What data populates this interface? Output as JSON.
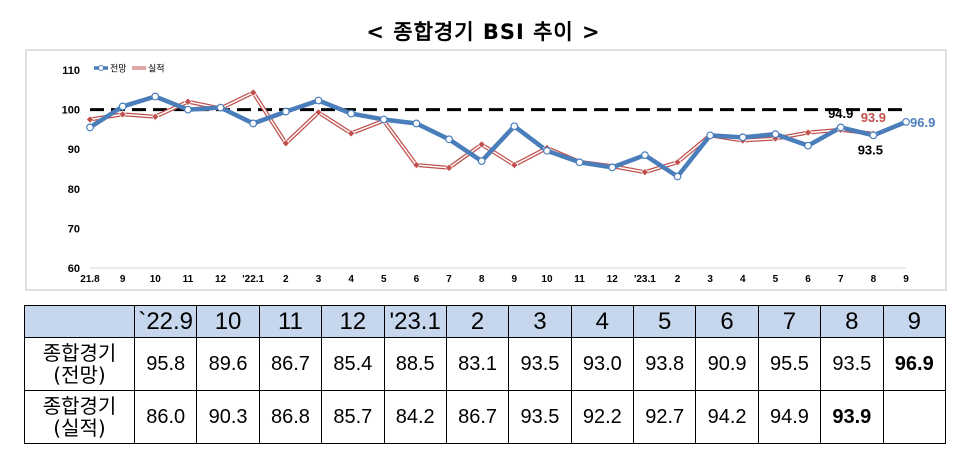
{
  "title": "< 종합경기 BSI 추이 >",
  "chart_data": {
    "type": "line",
    "x": [
      "21.8",
      "9",
      "10",
      "11",
      "12",
      "'22.1",
      "2",
      "3",
      "4",
      "5",
      "6",
      "7",
      "8",
      "9",
      "10",
      "11",
      "12",
      "'23.1",
      "2",
      "3",
      "4",
      "5",
      "6",
      "7",
      "8",
      "9"
    ],
    "ylim": [
      60,
      110
    ],
    "yticks": [
      60,
      70,
      80,
      90,
      100,
      110
    ],
    "reference_line": 100,
    "legend_position": "top-left",
    "series": [
      {
        "name": "전망",
        "color": "#4a7ebb",
        "values": [
          95.5,
          100.8,
          103.3,
          100.0,
          100.5,
          96.5,
          99.5,
          102.3,
          99.0,
          97.5,
          96.5,
          92.5,
          87.0,
          95.8,
          89.6,
          86.7,
          85.4,
          88.5,
          83.1,
          93.5,
          93.0,
          93.8,
          90.9,
          95.5,
          93.5,
          96.9
        ]
      },
      {
        "name": "실적",
        "color": "#c0504d",
        "values": [
          97.5,
          98.8,
          98.2,
          102.0,
          100.3,
          104.3,
          91.5,
          99.3,
          94.0,
          97.2,
          86.0,
          85.3,
          91.2,
          86.0,
          90.3,
          86.8,
          85.7,
          84.2,
          86.7,
          93.5,
          92.2,
          92.7,
          94.2,
          94.9,
          93.9,
          null
        ]
      }
    ],
    "annotations": [
      {
        "text": "94.9",
        "color": "#000000"
      },
      {
        "text": "93.9",
        "color": "#c0504d"
      },
      {
        "text": "96.9",
        "color": "#4a7ebb"
      },
      {
        "text": "93.5",
        "color": "#000000"
      }
    ]
  },
  "table": {
    "columns": [
      "`22.9",
      "10",
      "11",
      "12",
      "'23.1",
      "2",
      "3",
      "4",
      "5",
      "6",
      "7",
      "8",
      "9"
    ],
    "rows": [
      {
        "label_line1": "종합경기",
        "label_line2": "(전망)",
        "cells": [
          "95.8",
          "89.6",
          "86.7",
          "85.4",
          "88.5",
          "83.1",
          "93.5",
          "93.0",
          "93.8",
          "90.9",
          "95.5",
          "93.5",
          "96.9"
        ]
      },
      {
        "label_line1": "종합경기",
        "label_line2": "(실적)",
        "cells": [
          "86.0",
          "90.3",
          "86.8",
          "85.7",
          "84.2",
          "86.7",
          "93.5",
          "92.2",
          "92.7",
          "94.2",
          "94.9",
          "93.9",
          ""
        ]
      }
    ]
  }
}
